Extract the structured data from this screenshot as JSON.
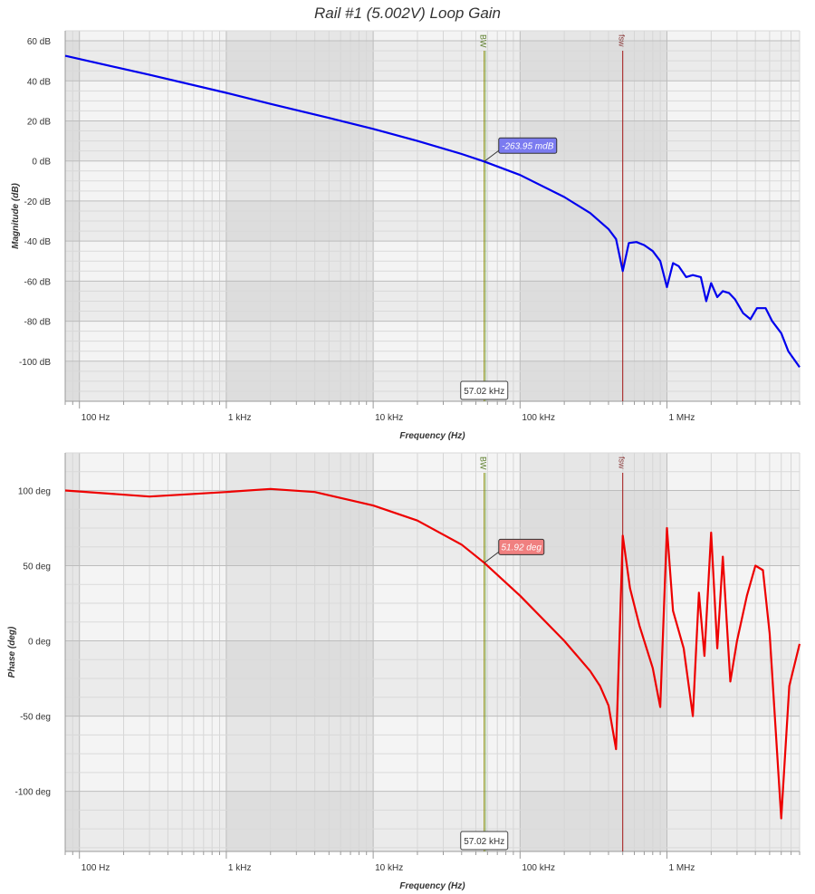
{
  "title": "Rail #1 (5.002V) Loop Gain",
  "colors": {
    "magnitude": "#0000ee",
    "phase": "#ee0000",
    "bw_marker": "#8a8a00",
    "fsw_marker": "#a31515",
    "mag_tooltip_bg": "#7b7bf0",
    "phase_tooltip_bg": "#f08080"
  },
  "markers": {
    "bw": {
      "label": "BW",
      "freq_hz": 57020
    },
    "fsw": {
      "label": "fsw",
      "freq_hz": 500000
    },
    "crossover_label": "57.02 kHz",
    "magnitude_tooltip": "-263.95 mdB",
    "phase_tooltip": "51.92 deg"
  },
  "chart_data": [
    {
      "type": "line",
      "name": "magnitude",
      "xscale": "log",
      "xlim": [
        80,
        8000000
      ],
      "ylim": [
        -120,
        65
      ],
      "xlabel": "Frequency (Hz)",
      "ylabel": "Magnitude (dB)",
      "xticks": [
        {
          "v": 100,
          "t": "100 Hz"
        },
        {
          "v": 1000,
          "t": "1 kHz"
        },
        {
          "v": 10000,
          "t": "10 kHz"
        },
        {
          "v": 100000,
          "t": "100 kHz"
        },
        {
          "v": 1000000,
          "t": "1 MHz"
        }
      ],
      "yticks": [
        {
          "v": 60,
          "t": "60 dB"
        },
        {
          "v": 40,
          "t": "40 dB"
        },
        {
          "v": 20,
          "t": "20 dB"
        },
        {
          "v": 0,
          "t": "0 dB"
        },
        {
          "v": -20,
          "t": "-20 dB"
        },
        {
          "v": -40,
          "t": "-40 dB"
        },
        {
          "v": -60,
          "t": "-60 dB"
        },
        {
          "v": -80,
          "t": "-80 dB"
        },
        {
          "v": -100,
          "t": "-100 dB"
        }
      ],
      "x": [
        80,
        300,
        1000,
        2000,
        5000,
        10000,
        20000,
        40000,
        57020,
        100000,
        200000,
        300000,
        400000,
        450000,
        500000,
        550000,
        620000,
        700000,
        800000,
        900000,
        1000000,
        1100000,
        1200000,
        1350000,
        1500000,
        1700000,
        1850000,
        2000000,
        2200000,
        2400000,
        2650000,
        2900000,
        3300000,
        3700000,
        4100000,
        4700000,
        5200000,
        6000000,
        6700000,
        8000000
      ],
      "y": [
        52.5,
        43,
        34,
        28.5,
        21.5,
        16,
        10,
        3.5,
        -0.26,
        -7,
        -18,
        -26,
        -34,
        -39,
        -55,
        -41,
        -40.5,
        -42,
        -45,
        -50,
        -63,
        -51,
        -52.5,
        -58,
        -57,
        -58,
        -70,
        -61,
        -68,
        -65,
        -66,
        -69,
        -76,
        -79,
        -73.5,
        -73.5,
        -80,
        -86,
        -95,
        -103
      ]
    },
    {
      "type": "line",
      "name": "phase",
      "xscale": "log",
      "xlim": [
        80,
        8000000
      ],
      "ylim": [
        -140,
        125
      ],
      "xlabel": "Frequency (Hz)",
      "ylabel": "Phase (deg)",
      "xticks": [
        {
          "v": 100,
          "t": "100 Hz"
        },
        {
          "v": 1000,
          "t": "1 kHz"
        },
        {
          "v": 10000,
          "t": "10 kHz"
        },
        {
          "v": 100000,
          "t": "100 kHz"
        },
        {
          "v": 1000000,
          "t": "1 MHz"
        }
      ],
      "yticks": [
        {
          "v": 100,
          "t": "100 deg"
        },
        {
          "v": 50,
          "t": "50 deg"
        },
        {
          "v": 0,
          "t": "0 deg"
        },
        {
          "v": -50,
          "t": "-50 deg"
        },
        {
          "v": -100,
          "t": "-100 deg"
        }
      ],
      "x": [
        80,
        300,
        1000,
        2000,
        4000,
        10000,
        20000,
        40000,
        57020,
        100000,
        200000,
        300000,
        350000,
        400000,
        450000,
        500000,
        560000,
        650000,
        800000,
        900000,
        1000000,
        1100000,
        1300000,
        1500000,
        1650000,
        1800000,
        2000000,
        2200000,
        2400000,
        2700000,
        3000000,
        3500000,
        4000000,
        4500000,
        5000000,
        6000000,
        6800000,
        8000000
      ],
      "y": [
        100,
        96,
        99,
        101,
        99,
        90,
        80,
        64,
        51.92,
        30,
        0,
        -20,
        -30,
        -43,
        -72,
        70,
        35,
        10,
        -18,
        -44,
        75,
        20,
        -5,
        -50,
        32,
        -10,
        72,
        -5,
        56,
        -27,
        0,
        30,
        50,
        47,
        5,
        -118,
        -30,
        -2
      ]
    }
  ]
}
